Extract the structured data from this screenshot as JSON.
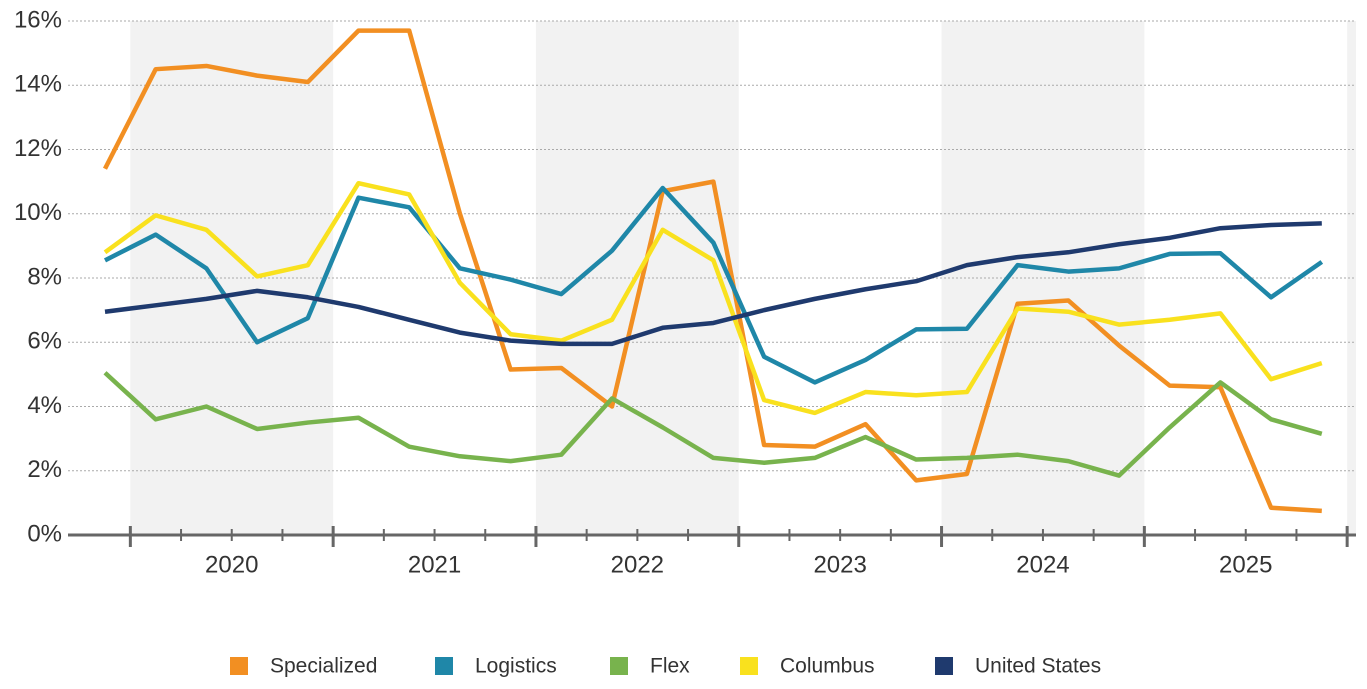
{
  "chart_data": {
    "type": "line",
    "categories": [
      null,
      null,
      null,
      null,
      null,
      null,
      null,
      null,
      null,
      null,
      null,
      null,
      null,
      null,
      null,
      null,
      null,
      null,
      null,
      null,
      null,
      null,
      null,
      null,
      null
    ],
    "year_labels": [
      "2020",
      "2021",
      "2022",
      "2023",
      "2024",
      "2025"
    ],
    "series": [
      {
        "name": "Specialized",
        "color": "#f28f22",
        "values": [
          11.4,
          14.5,
          14.6,
          14.3,
          14.1,
          15.7,
          15.7,
          10.0,
          5.15,
          5.2,
          4.0,
          10.7,
          11.0,
          2.8,
          2.75,
          3.45,
          1.7,
          1.9,
          7.2,
          7.3,
          5.9,
          4.65,
          4.6,
          0.85,
          0.75
        ]
      },
      {
        "name": "Logistics",
        "color": "#1f87a8",
        "values": [
          8.55,
          9.35,
          8.3,
          6.0,
          6.75,
          10.5,
          10.2,
          8.3,
          7.95,
          7.5,
          8.85,
          10.8,
          9.1,
          5.55,
          4.75,
          5.45,
          6.4,
          6.42,
          8.4,
          8.2,
          8.3,
          8.75,
          8.77,
          7.4,
          8.5
        ]
      },
      {
        "name": "Flex",
        "color": "#78b34d",
        "values": [
          5.05,
          3.6,
          4.0,
          3.3,
          3.5,
          3.65,
          2.75,
          2.45,
          2.3,
          2.5,
          4.25,
          3.35,
          2.4,
          2.25,
          2.4,
          3.05,
          2.35,
          2.4,
          2.5,
          2.3,
          1.85,
          3.35,
          4.75,
          3.6,
          3.15
        ]
      },
      {
        "name": "Columbus",
        "color": "#f9e11e",
        "values": [
          8.8,
          9.95,
          9.5,
          8.05,
          8.4,
          10.95,
          10.6,
          7.85,
          6.25,
          6.05,
          6.7,
          9.5,
          8.55,
          4.2,
          3.8,
          4.45,
          4.35,
          4.45,
          7.05,
          6.95,
          6.55,
          6.7,
          6.9,
          4.85,
          5.35
        ]
      },
      {
        "name": "United States",
        "color": "#1f3a6e",
        "values": [
          6.95,
          7.15,
          7.35,
          7.6,
          7.4,
          7.1,
          6.7,
          6.3,
          6.05,
          5.95,
          5.95,
          6.45,
          6.6,
          7.0,
          7.35,
          7.65,
          7.9,
          8.4,
          8.65,
          8.8,
          9.05,
          9.25,
          9.55,
          9.65,
          9.7
        ]
      }
    ],
    "ylim": [
      0,
      16
    ],
    "yticks": [
      {
        "value": 0,
        "label": "0%"
      },
      {
        "value": 2,
        "label": "2%"
      },
      {
        "value": 4,
        "label": "4%"
      },
      {
        "value": 6,
        "label": "6%"
      },
      {
        "value": 8,
        "label": "8%"
      },
      {
        "value": 10,
        "label": "10%"
      },
      {
        "value": 12,
        "label": "12%"
      },
      {
        "value": 14,
        "label": "14%"
      },
      {
        "value": 16,
        "label": "16%"
      }
    ],
    "grid": true
  }
}
